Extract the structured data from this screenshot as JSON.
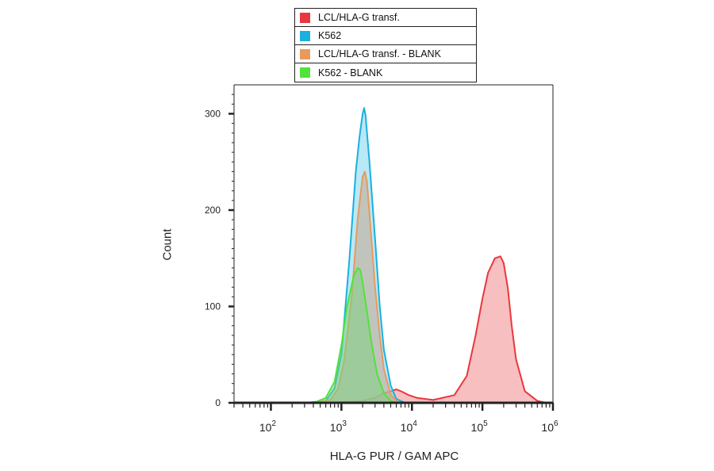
{
  "chart_data": {
    "type": "area",
    "title": "",
    "xlabel": "HLA-G PUR / GAM APC",
    "ylabel": "Count",
    "x_scale": "log",
    "xlim": [
      30,
      1000000
    ],
    "ylim": [
      0,
      330
    ],
    "x_tick_labels": [
      {
        "value": 100,
        "base": "10",
        "exp": "2"
      },
      {
        "value": 1000,
        "base": "10",
        "exp": "3"
      },
      {
        "value": 10000,
        "base": "10",
        "exp": "4"
      },
      {
        "value": 100000,
        "base": "10",
        "exp": "5"
      },
      {
        "value": 1000000,
        "base": "10",
        "exp": "6"
      }
    ],
    "y_ticks": [
      0,
      100,
      200,
      300
    ],
    "grid": false,
    "legend_position": "top",
    "series": [
      {
        "name": "LCL/HLA-G transf.",
        "color": "#e8383d",
        "fill": "#f08a8d",
        "x": [
          300,
          1000,
          2000,
          3000,
          4000,
          5000,
          6000,
          7000,
          9000,
          12000,
          20000,
          40000,
          60000,
          80000,
          100000,
          120000,
          150000,
          180000,
          200000,
          230000,
          260000,
          300000,
          400000,
          600000,
          800000
        ],
        "y": [
          0,
          0.5,
          2,
          5,
          10,
          12,
          14,
          12,
          8,
          5,
          3,
          8,
          28,
          70,
          108,
          135,
          150,
          152,
          145,
          118,
          80,
          45,
          12,
          2,
          0
        ]
      },
      {
        "name": "K562",
        "color": "#1bb0de",
        "fill": "#7fd6ef",
        "x": [
          300,
          600,
          800,
          1000,
          1300,
          1600,
          1800,
          2000,
          2100,
          2200,
          2500,
          3000,
          3500,
          4000,
          5000,
          6000,
          8000
        ],
        "y": [
          0,
          2,
          15,
          50,
          150,
          240,
          275,
          300,
          306,
          298,
          250,
          170,
          100,
          55,
          18,
          4,
          0
        ]
      },
      {
        "name": "LCL/HLA-G transf. - BLANK",
        "color": "#e99a5a",
        "fill": "#c9a68c",
        "x": [
          400,
          700,
          900,
          1100,
          1400,
          1700,
          2000,
          2150,
          2300,
          2600,
          3000,
          3500,
          4000,
          5000,
          6500
        ],
        "y": [
          0,
          3,
          15,
          45,
          110,
          190,
          235,
          240,
          230,
          180,
          120,
          70,
          35,
          8,
          0
        ]
      },
      {
        "name": "K562 - BLANK",
        "color": "#52e23a",
        "fill": "#7fd27f",
        "x": [
          400,
          600,
          800,
          1000,
          1200,
          1500,
          1700,
          1850,
          2000,
          2300,
          2700,
          3200,
          4000,
          5000,
          6000
        ],
        "y": [
          0,
          5,
          22,
          60,
          100,
          132,
          140,
          138,
          125,
          95,
          60,
          30,
          10,
          2,
          0
        ]
      }
    ]
  }
}
